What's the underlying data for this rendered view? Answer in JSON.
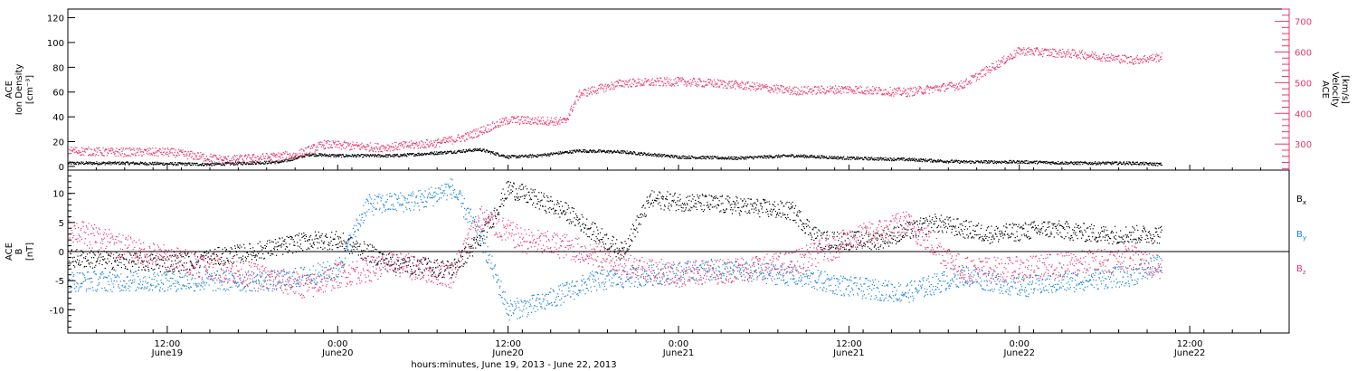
{
  "chart_data": {
    "type": "scatter",
    "xaxis": {
      "title": "hours:minutes, June 19, 2013 - June 22, 2013",
      "range": [
        "2013-06-19T05:00",
        "2013-06-22T19:00"
      ],
      "ticks": [
        {
          "time": "2013-06-19T12:00",
          "label": "12:00",
          "sublabel": "June19"
        },
        {
          "time": "2013-06-20T00:00",
          "label": "0:00",
          "sublabel": "June20"
        },
        {
          "time": "2013-06-20T12:00",
          "label": "12:00",
          "sublabel": "June20"
        },
        {
          "time": "2013-06-21T00:00",
          "label": "0:00",
          "sublabel": "June21"
        },
        {
          "time": "2013-06-21T12:00",
          "label": "12:00",
          "sublabel": "June21"
        },
        {
          "time": "2013-06-22T00:00",
          "label": "0:00",
          "sublabel": "June22"
        },
        {
          "time": "2013-06-22T12:00",
          "label": "12:00",
          "sublabel": "June22"
        }
      ]
    },
    "panels": [
      {
        "name": "plasma",
        "left_axis": {
          "label_lines": [
            "ACE",
            "Ion Density",
            "[cm⁻³]"
          ],
          "ylim": [
            -3,
            127
          ],
          "ticks": [
            0,
            20,
            40,
            60,
            80,
            100,
            120
          ]
        },
        "right_axis": {
          "label_lines": [
            "ACE",
            "Velocity",
            "[km/s]"
          ],
          "ylim": [
            215,
            740
          ],
          "ticks": [
            300,
            400,
            500,
            600,
            700
          ],
          "color": "#e8376a"
        },
        "series": [
          {
            "axis": "left",
            "color": "#000000",
            "x": [
              "2013-06-19T05:00",
              "2013-06-19T09:00",
              "2013-06-19T15:00",
              "2013-06-19T20:00",
              "2013-06-19T22:00",
              "2013-06-20T00:00",
              "2013-06-20T04:00",
              "2013-06-20T08:00",
              "2013-06-20T10:00",
              "2013-06-20T12:00",
              "2013-06-20T14:00",
              "2013-06-20T17:00",
              "2013-06-20T20:00",
              "2013-06-21T00:00",
              "2013-06-21T04:00",
              "2013-06-21T08:00",
              "2013-06-21T12:00",
              "2013-06-21T16:00",
              "2013-06-21T20:00",
              "2013-06-22T00:00",
              "2013-06-22T04:00",
              "2013-06-22T08:00",
              "2013-06-22T10:00"
            ],
            "y": [
              3,
              3,
              2,
              4,
              10,
              9,
              9,
              12,
              14,
              8,
              9,
              13,
              12,
              8,
              7,
              9,
              7,
              6,
              4,
              4,
              3,
              3,
              2
            ]
          },
          {
            "axis": "right",
            "color": "#e8376a",
            "x": [
              "2013-06-19T05:00",
              "2013-06-19T08:00",
              "2013-06-19T12:00",
              "2013-06-19T16:00",
              "2013-06-19T18:00",
              "2013-06-19T21:00",
              "2013-06-19T23:00",
              "2013-06-20T03:00",
              "2013-06-20T07:00",
              "2013-06-20T09:00",
              "2013-06-20T12:00",
              "2013-06-20T16:00",
              "2013-06-20T17:00",
              "2013-06-20T20:00",
              "2013-06-21T00:00",
              "2013-06-21T04:00",
              "2013-06-21T08:00",
              "2013-06-21T12:00",
              "2013-06-21T16:00",
              "2013-06-21T20:00",
              "2013-06-22T00:00",
              "2013-06-22T04:00",
              "2013-06-22T08:00",
              "2013-06-22T10:00"
            ],
            "y": [
              280,
              275,
              275,
              250,
              255,
              265,
              300,
              290,
              305,
              325,
              380,
              375,
              465,
              500,
              505,
              495,
              475,
              480,
              470,
              495,
              605,
              595,
              575,
              585
            ]
          }
        ]
      },
      {
        "name": "magnetic",
        "left_axis": {
          "label_lines": [
            "ACE",
            "B",
            "[nT]"
          ],
          "ylim": [
            -14,
            14
          ],
          "ticks": [
            -10,
            -5,
            0,
            5,
            10
          ],
          "zero_line": true
        },
        "legend": [
          {
            "text": "B",
            "sub": "x",
            "color": "#000000"
          },
          {
            "text": "B",
            "sub": "y",
            "color": "#1b82dc"
          },
          {
            "text": "B",
            "sub": "z",
            "color": "#e8376a"
          }
        ],
        "series": [
          {
            "name": "Bx",
            "color": "#000000",
            "x": [
              "2013-06-19T05:00",
              "2013-06-19T12:00",
              "2013-06-19T18:00",
              "2013-06-19T22:00",
              "2013-06-20T00:00",
              "2013-06-20T04:00",
              "2013-06-20T08:00",
              "2013-06-20T10:00",
              "2013-06-20T12:00",
              "2013-06-20T16:00",
              "2013-06-20T20:00",
              "2013-06-20T22:00",
              "2013-06-21T04:00",
              "2013-06-21T08:00",
              "2013-06-21T10:00",
              "2013-06-21T14:00",
              "2013-06-21T18:00",
              "2013-06-21T22:00",
              "2013-06-22T02:00",
              "2013-06-22T06:00",
              "2013-06-22T10:00"
            ],
            "y": [
              -1,
              -2,
              0,
              2,
              2,
              -2,
              -3,
              2,
              11,
              7,
              0,
              9,
              8,
              7,
              2,
              2,
              5,
              3,
              4,
              3,
              3
            ]
          },
          {
            "name": "By",
            "color": "#1b82dc",
            "x": [
              "2013-06-19T05:00",
              "2013-06-19T12:00",
              "2013-06-19T16:00",
              "2013-06-19T20:00",
              "2013-06-20T00:00",
              "2013-06-20T02:00",
              "2013-06-20T06:00",
              "2013-06-20T08:00",
              "2013-06-20T10:00",
              "2013-06-20T12:00",
              "2013-06-20T14:00",
              "2013-06-20T18:00",
              "2013-06-20T22:00",
              "2013-06-21T02:00",
              "2013-06-21T08:00",
              "2013-06-21T12:00",
              "2013-06-21T16:00",
              "2013-06-21T20:00",
              "2013-06-22T00:00",
              "2013-06-22T04:00",
              "2013-06-22T08:00",
              "2013-06-22T10:00"
            ],
            "y": [
              -5,
              -5,
              -5,
              -5,
              -3,
              8,
              9,
              11,
              3,
              -10,
              -9,
              -5,
              -4,
              -3,
              -4,
              -6,
              -7,
              -4,
              -6,
              -5,
              -4,
              -2
            ]
          },
          {
            "name": "Bz",
            "color": "#e8376a",
            "x": [
              "2013-06-19T05:00",
              "2013-06-19T10:00",
              "2013-06-19T16:00",
              "2013-06-19T22:00",
              "2013-06-20T00:00",
              "2013-06-20T04:00",
              "2013-06-20T08:00",
              "2013-06-20T10:00",
              "2013-06-20T13:00",
              "2013-06-20T16:00",
              "2013-06-20T20:00",
              "2013-06-21T00:00",
              "2013-06-21T04:00",
              "2013-06-21T08:00",
              "2013-06-21T12:00",
              "2013-06-21T16:00",
              "2013-06-21T20:00",
              "2013-06-22T00:00",
              "2013-06-22T04:00",
              "2013-06-22T08:00",
              "2013-06-22T10:00"
            ],
            "y": [
              4,
              0,
              -3,
              -6,
              -4,
              -2,
              -4,
              6,
              2,
              1,
              -2,
              -4,
              -3,
              -2,
              2,
              5,
              -3,
              -3,
              -2,
              -1,
              -3
            ]
          }
        ]
      }
    ]
  }
}
